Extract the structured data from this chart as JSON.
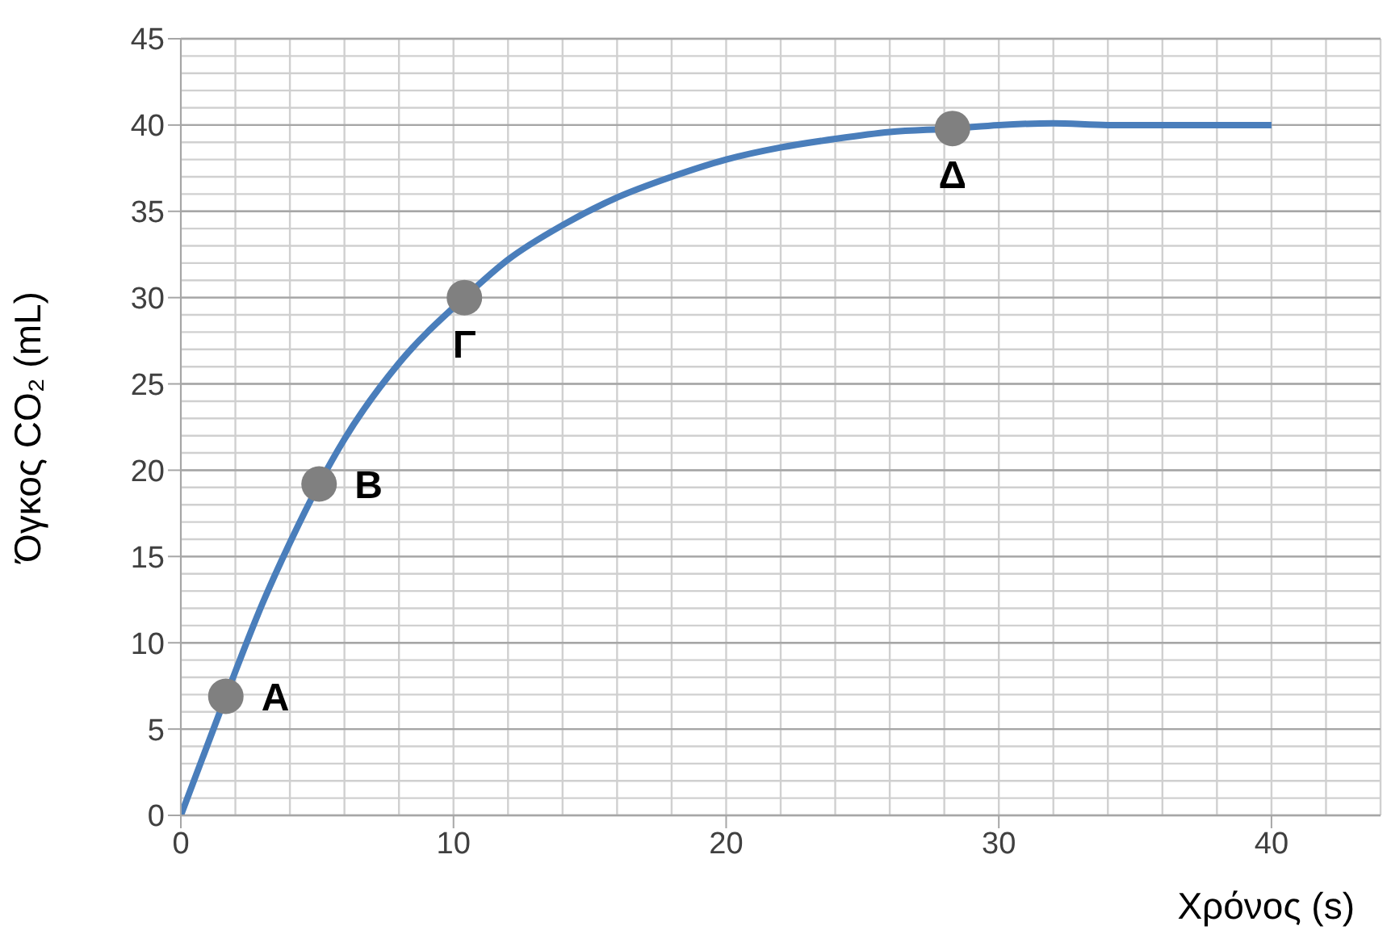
{
  "chart_data": {
    "type": "line",
    "xlabel": "Χρόνος (s)",
    "ylabel": "Όγκος  CO₂ (mL)",
    "xlim": [
      0,
      44
    ],
    "xticks": [
      0,
      10,
      20,
      30,
      40
    ],
    "ylim": [
      0,
      45
    ],
    "yticks": [
      0,
      5,
      10,
      15,
      20,
      25,
      30,
      35,
      40,
      45
    ],
    "grid": true,
    "series": [
      {
        "color": "#4a7ebb",
        "marker": "none",
        "x": [
          0,
          1.65,
          3,
          4,
          5.07,
          6,
          8,
          10.4,
          12,
          14,
          16,
          18,
          20,
          22,
          24,
          26,
          28.3,
          30,
          32,
          34,
          36,
          40
        ],
        "values": [
          0,
          6.9,
          12.3,
          15.8,
          19.2,
          21.8,
          26.2,
          30,
          32.2,
          34.2,
          35.8,
          37,
          38,
          38.7,
          39.2,
          39.6,
          39.8,
          40,
          40.1,
          40,
          40,
          40
        ]
      },
      {
        "type": "scatter",
        "color": "#808080",
        "marker": "circle",
        "x": [
          1.65,
          5.07,
          10.4,
          28.3
        ],
        "values": [
          6.9,
          19.2,
          30,
          39.8
        ]
      }
    ],
    "annotations": [
      {
        "text": "Α",
        "x": 1.65,
        "y": 6.9
      },
      {
        "text": "Β",
        "x": 5.07,
        "y": 19.2
      },
      {
        "text": "Γ",
        "x": 10.4,
        "y": 30
      },
      {
        "text": "Δ",
        "x": 28.3,
        "y": 39.8
      }
    ]
  }
}
